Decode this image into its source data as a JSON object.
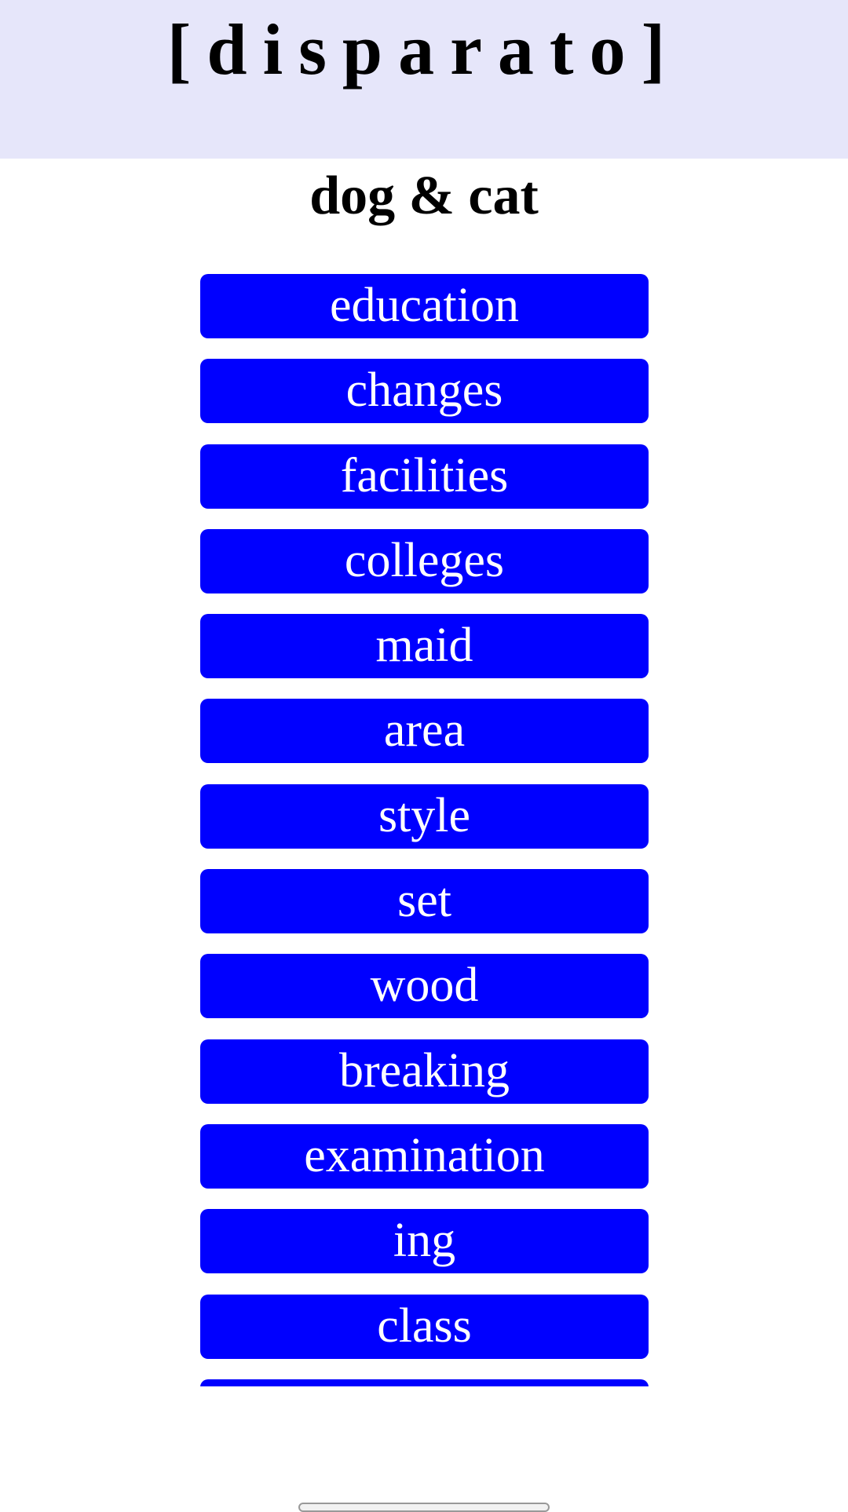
{
  "header": {
    "site_title": "[disparato]",
    "background_color": "#e6e6fa"
  },
  "page": {
    "title": "dog & cat"
  },
  "list": {
    "button_color": "#0000ff",
    "items": [
      {
        "label": "education"
      },
      {
        "label": "changes"
      },
      {
        "label": "facilities"
      },
      {
        "label": "colleges"
      },
      {
        "label": "maid"
      },
      {
        "label": "area"
      },
      {
        "label": "style"
      },
      {
        "label": "set"
      },
      {
        "label": "wood"
      },
      {
        "label": "breaking"
      },
      {
        "label": "examination"
      },
      {
        "label": "ing"
      },
      {
        "label": "class"
      },
      {
        "label": ""
      }
    ]
  }
}
